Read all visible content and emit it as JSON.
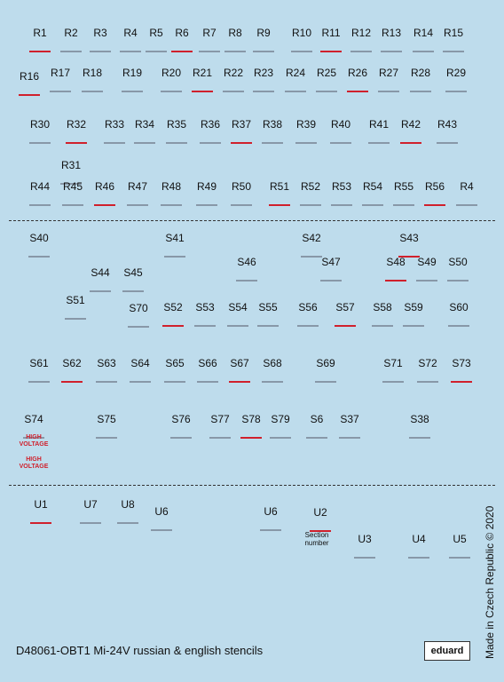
{
  "labels": [
    "R1",
    "R2",
    "R3",
    "R4",
    "R5",
    "R6",
    "R7",
    "R8",
    "R9",
    "R10",
    "R11",
    "R12",
    "R13",
    "R14",
    "R15",
    "R16",
    "R17",
    "R18",
    "R19",
    "R20",
    "R21",
    "R22",
    "R23",
    "R24",
    "R25",
    "R26",
    "R27",
    "R28",
    "R29",
    "R30",
    "R32",
    "R33",
    "R34",
    "R35",
    "R36",
    "R37",
    "R38",
    "R39",
    "R40",
    "R41",
    "R42",
    "R43",
    "R31",
    "R44",
    "R45",
    "R46",
    "R47",
    "R48",
    "R49",
    "R50",
    "R51",
    "R52",
    "R53",
    "R54",
    "R55",
    "R56",
    "R4",
    "S40",
    "S41",
    "S42",
    "S43",
    "S44",
    "S45",
    "S46",
    "S47",
    "S48",
    "S49",
    "S50",
    "S51",
    "S70",
    "S52",
    "S53",
    "S54",
    "S55",
    "S56",
    "S57",
    "S58",
    "S59",
    "S60",
    "S61",
    "S62",
    "S63",
    "S64",
    "S65",
    "S66",
    "S67",
    "S68",
    "S69",
    "S71",
    "S72",
    "S73",
    "S74",
    "S75",
    "S76",
    "S77",
    "S78",
    "S79",
    "S6",
    "S37",
    "S38",
    "U1",
    "U7",
    "U8",
    "U6",
    "U6",
    "U2",
    "U3",
    "U4",
    "U5"
  ],
  "high_voltage": [
    "HIGH VOLTAGE",
    "HIGH VOLTAGE"
  ],
  "section_number": "Section number",
  "footer": {
    "title": "D48061-OBT1 Mi-24V russian & english stencils",
    "brand": "eduard",
    "copyright": "Made in Czech Republic © 2020"
  }
}
